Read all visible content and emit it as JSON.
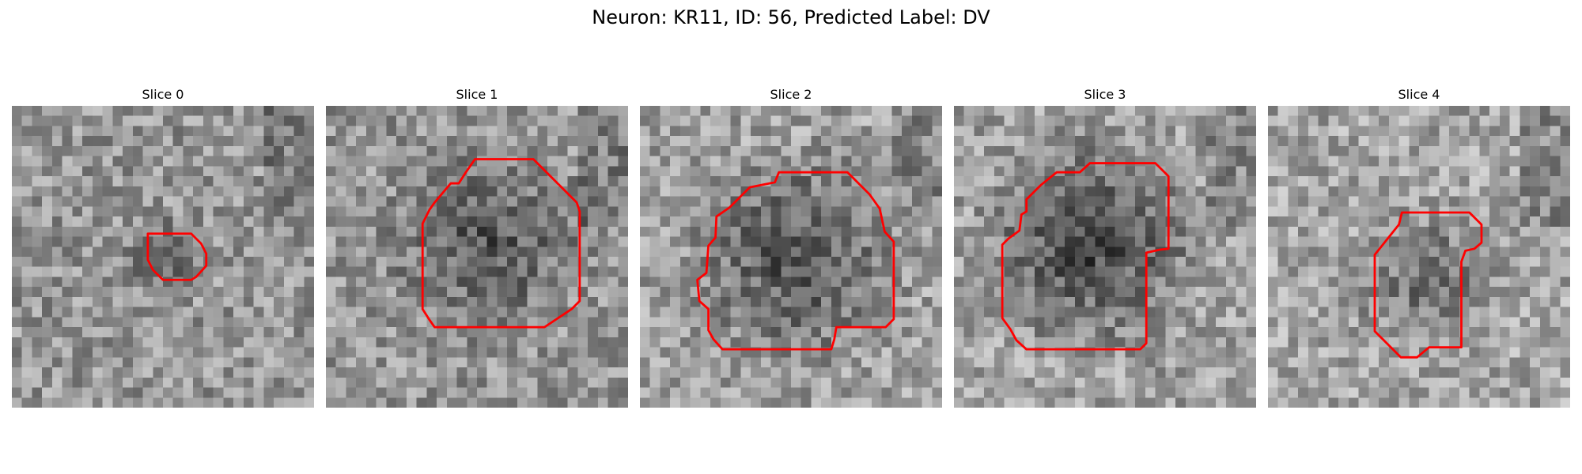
{
  "figure": {
    "title": "Neuron: KR11, ID: 56, Predicted Label: DV",
    "contour_color": "#ff0000",
    "colormap": "grayscale"
  },
  "panels": [
    {
      "label": "Slice 0"
    },
    {
      "label": "Slice 1"
    },
    {
      "label": "Slice 2"
    },
    {
      "label": "Slice 3"
    },
    {
      "label": "Slice 4"
    }
  ]
}
